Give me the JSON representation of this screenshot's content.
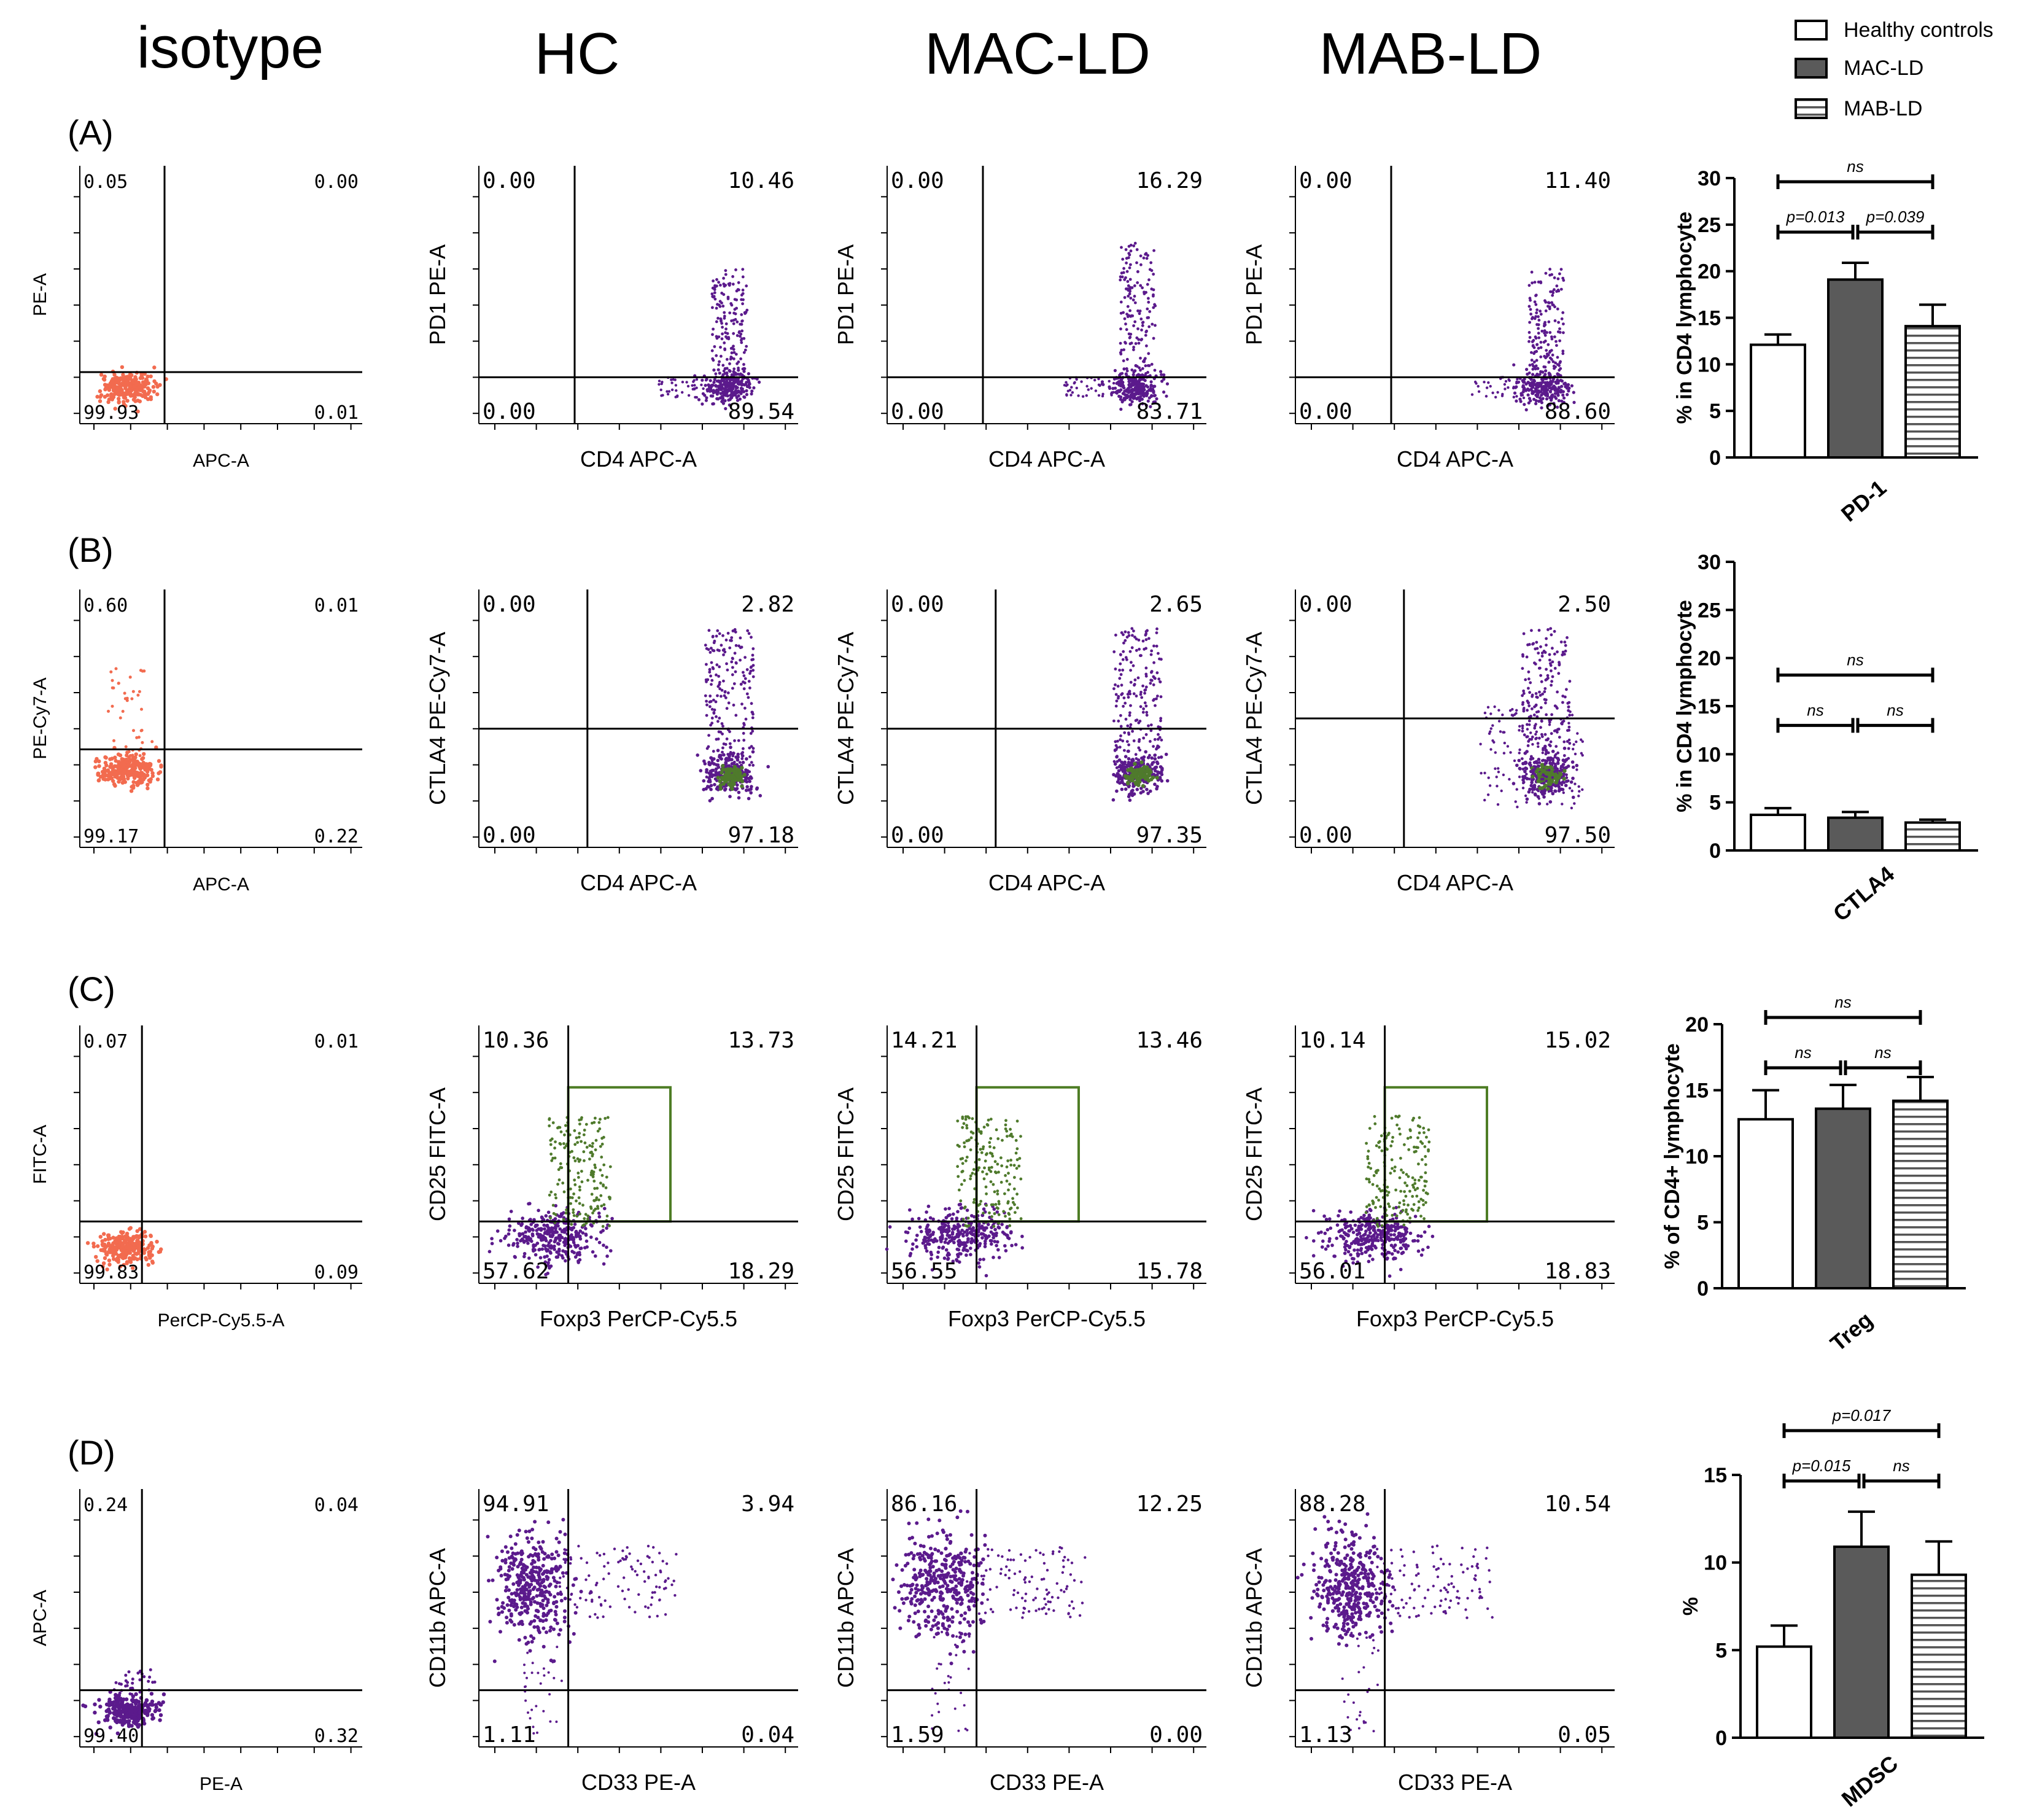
{
  "figure": {
    "column_titles": [
      "isotype",
      "HC",
      "MAC-LD",
      "MAB-LD"
    ],
    "row_labels": [
      "(A)",
      "(B)",
      "(C)",
      "(D)"
    ],
    "legend": [
      {
        "label": "Healthy controls",
        "fill": "white"
      },
      {
        "label": "MAC-LD",
        "fill": "dark"
      },
      {
        "label": "MAB-LD",
        "fill": "striped"
      }
    ]
  },
  "rows": [
    {
      "label": "(A)",
      "panels": [
        {
          "group": "isotype",
          "ylabel": "PE-A",
          "xlabel": "APC-A",
          "ul": "0.05",
          "ur": "0.00",
          "ll": "99.93",
          "lr": "0.01"
        },
        {
          "group": "HC",
          "ylabel": "PD1 PE-A",
          "xlabel": "CD4 APC-A",
          "ul": "0.00",
          "ur": "10.46",
          "ll": "0.00",
          "lr": "89.54"
        },
        {
          "group": "MAC-LD",
          "ylabel": "PD1 PE-A",
          "xlabel": "CD4 APC-A",
          "ul": "0.00",
          "ur": "16.29",
          "ll": "0.00",
          "lr": "83.71"
        },
        {
          "group": "MAB-LD",
          "ylabel": "PD1 PE-A",
          "xlabel": "CD4 APC-A",
          "ul": "0.00",
          "ur": "11.40",
          "ll": "0.00",
          "lr": "88.60"
        }
      ]
    },
    {
      "label": "(B)",
      "panels": [
        {
          "group": "isotype",
          "ylabel": "PE-Cy7-A",
          "xlabel": "APC-A",
          "ul": "0.60",
          "ur": "0.01",
          "ll": "99.17",
          "lr": "0.22"
        },
        {
          "group": "HC",
          "ylabel": "CTLA4 PE-Cy7-A",
          "xlabel": "CD4 APC-A",
          "ul": "0.00",
          "ur": "2.82",
          "ll": "0.00",
          "lr": "97.18"
        },
        {
          "group": "MAC-LD",
          "ylabel": "CTLA4 PE-Cy7-A",
          "xlabel": "CD4 APC-A",
          "ul": "0.00",
          "ur": "2.65",
          "ll": "0.00",
          "lr": "97.35"
        },
        {
          "group": "MAB-LD",
          "ylabel": "CTLA4 PE-Cy7-A",
          "xlabel": "CD4 APC-A",
          "ul": "0.00",
          "ur": "2.50",
          "ll": "0.00",
          "lr": "97.50"
        }
      ]
    },
    {
      "label": "(C)",
      "panels": [
        {
          "group": "isotype",
          "ylabel": "FITC-A",
          "xlabel": "PerCP-Cy5.5-A",
          "ul": "0.07",
          "ur": "0.01",
          "ll": "99.83",
          "lr": "0.09"
        },
        {
          "group": "HC",
          "ylabel": "CD25 FITC-A",
          "xlabel": "Foxp3 PerCP-Cy5.5",
          "ul": "10.36",
          "ur": "13.73",
          "ll": "57.62",
          "lr": "18.29"
        },
        {
          "group": "MAC-LD",
          "ylabel": "CD25 FITC-A",
          "xlabel": "Foxp3 PerCP-Cy5.5",
          "ul": "14.21",
          "ur": "13.46",
          "ll": "56.55",
          "lr": "15.78"
        },
        {
          "group": "MAB-LD",
          "ylabel": "CD25 FITC-A",
          "xlabel": "Foxp3 PerCP-Cy5.5",
          "ul": "10.14",
          "ur": "15.02",
          "ll": "56.01",
          "lr": "18.83"
        }
      ]
    },
    {
      "label": "(D)",
      "panels": [
        {
          "group": "isotype",
          "ylabel": "APC-A",
          "xlabel": "PE-A",
          "ul": "0.24",
          "ur": "0.04",
          "ll": "99.40",
          "lr": "0.32"
        },
        {
          "group": "HC",
          "ylabel": "CD11b APC-A",
          "xlabel": "CD33 PE-A",
          "ul": "94.91",
          "ur": "3.94",
          "ll": "1.11",
          "lr": "0.04"
        },
        {
          "group": "MAC-LD",
          "ylabel": "CD11b APC-A",
          "xlabel": "CD33 PE-A",
          "ul": "86.16",
          "ur": "12.25",
          "ll": "1.59",
          "lr": "0.00"
        },
        {
          "group": "MAB-LD",
          "ylabel": "CD11b APC-A",
          "xlabel": "CD33 PE-A",
          "ul": "88.28",
          "ur": "10.54",
          "ll": "1.13",
          "lr": "0.05"
        }
      ]
    }
  ],
  "chart_data": [
    {
      "type": "bar",
      "title": "",
      "xlabel": "PD-1",
      "ylabel": "% in CD4 lymphocyte",
      "categories": [
        "Healthy controls",
        "MAC-LD",
        "MAB-LD"
      ],
      "values": [
        12.1,
        19.1,
        14.1
      ],
      "errors": [
        1.1,
        1.8,
        2.3
      ],
      "ylim": [
        0,
        30
      ],
      "yticks": [
        0,
        5,
        10,
        15,
        20,
        25,
        30
      ],
      "brackets": [
        {
          "from": 0,
          "to": 2,
          "label": "ns"
        },
        {
          "from": 0,
          "to": 1,
          "label": "p=0.013"
        },
        {
          "from": 1,
          "to": 2,
          "label": "p=0.039"
        }
      ]
    },
    {
      "type": "bar",
      "title": "",
      "xlabel": "CTLA4",
      "ylabel": "% in CD4 lymphocyte",
      "categories": [
        "Healthy controls",
        "MAC-LD",
        "MAB-LD"
      ],
      "values": [
        3.7,
        3.4,
        2.9
      ],
      "errors": [
        0.7,
        0.6,
        0.3
      ],
      "ylim": [
        0,
        30
      ],
      "yticks": [
        0,
        5,
        10,
        15,
        20,
        25,
        30
      ],
      "brackets": [
        {
          "from": 0,
          "to": 2,
          "label": "ns"
        },
        {
          "from": 0,
          "to": 1,
          "label": "ns"
        },
        {
          "from": 1,
          "to": 2,
          "label": "ns"
        }
      ]
    },
    {
      "type": "bar",
      "title": "",
      "xlabel": "Treg",
      "ylabel": "% of CD4+ lymphocyte",
      "categories": [
        "Healthy controls",
        "MAC-LD",
        "MAB-LD"
      ],
      "values": [
        12.8,
        13.6,
        14.2
      ],
      "errors": [
        2.2,
        1.8,
        1.8
      ],
      "ylim": [
        0,
        20
      ],
      "yticks": [
        0,
        5,
        10,
        15,
        20
      ],
      "brackets": [
        {
          "from": 0,
          "to": 2,
          "label": "ns"
        },
        {
          "from": 0,
          "to": 1,
          "label": "ns"
        },
        {
          "from": 1,
          "to": 2,
          "label": "ns"
        }
      ]
    },
    {
      "type": "bar",
      "title": "",
      "xlabel": "MDSC",
      "ylabel": "%",
      "categories": [
        "Healthy controls",
        "MAC-LD",
        "MAB-LD"
      ],
      "values": [
        5.2,
        10.9,
        9.3
      ],
      "errors": [
        1.2,
        2.0,
        1.9
      ],
      "ylim": [
        0,
        15
      ],
      "yticks": [
        0,
        5,
        10,
        15
      ],
      "brackets": [
        {
          "from": 0,
          "to": 2,
          "label": "p=0.017"
        },
        {
          "from": 0,
          "to": 1,
          "label": "p=0.015"
        },
        {
          "from": 1,
          "to": 2,
          "label": "ns"
        }
      ]
    }
  ],
  "colors": {
    "isotype_dots": "#f26b4f",
    "sample_dots": "#5b1a8c",
    "gated_dots": "#4f7a2c",
    "gate_box": "#4e7d25",
    "bar_dark": "#5a5a5a"
  }
}
